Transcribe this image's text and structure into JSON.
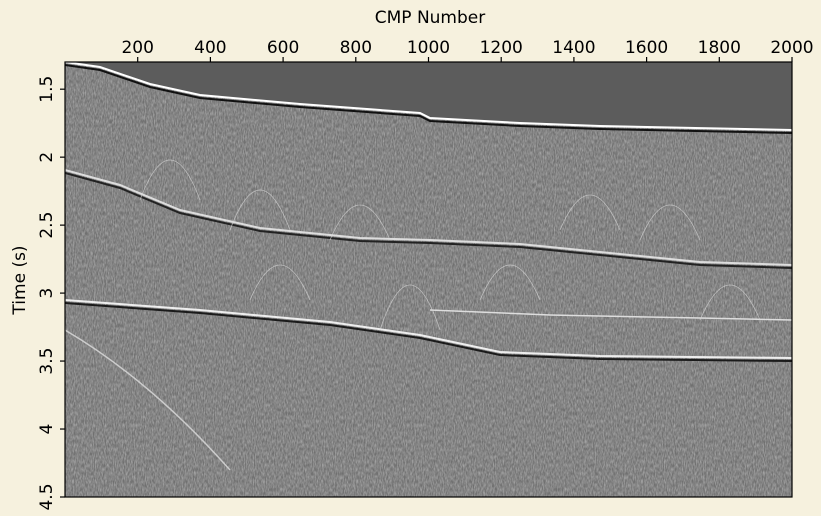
{
  "chart_data": {
    "type": "image",
    "xlabel": "CMP Number",
    "ylabel": "Time (s)",
    "xlim": [
      0,
      2000
    ],
    "xticks": [
      200,
      400,
      600,
      800,
      1000,
      1200,
      1400,
      1600,
      1800,
      2000
    ],
    "ylim": [
      1.3,
      4.5
    ],
    "yticks": [
      1.5,
      2,
      2.5,
      3,
      3.5,
      4,
      4.5
    ],
    "y_inverted": true,
    "x_axis_position": "top"
  }
}
